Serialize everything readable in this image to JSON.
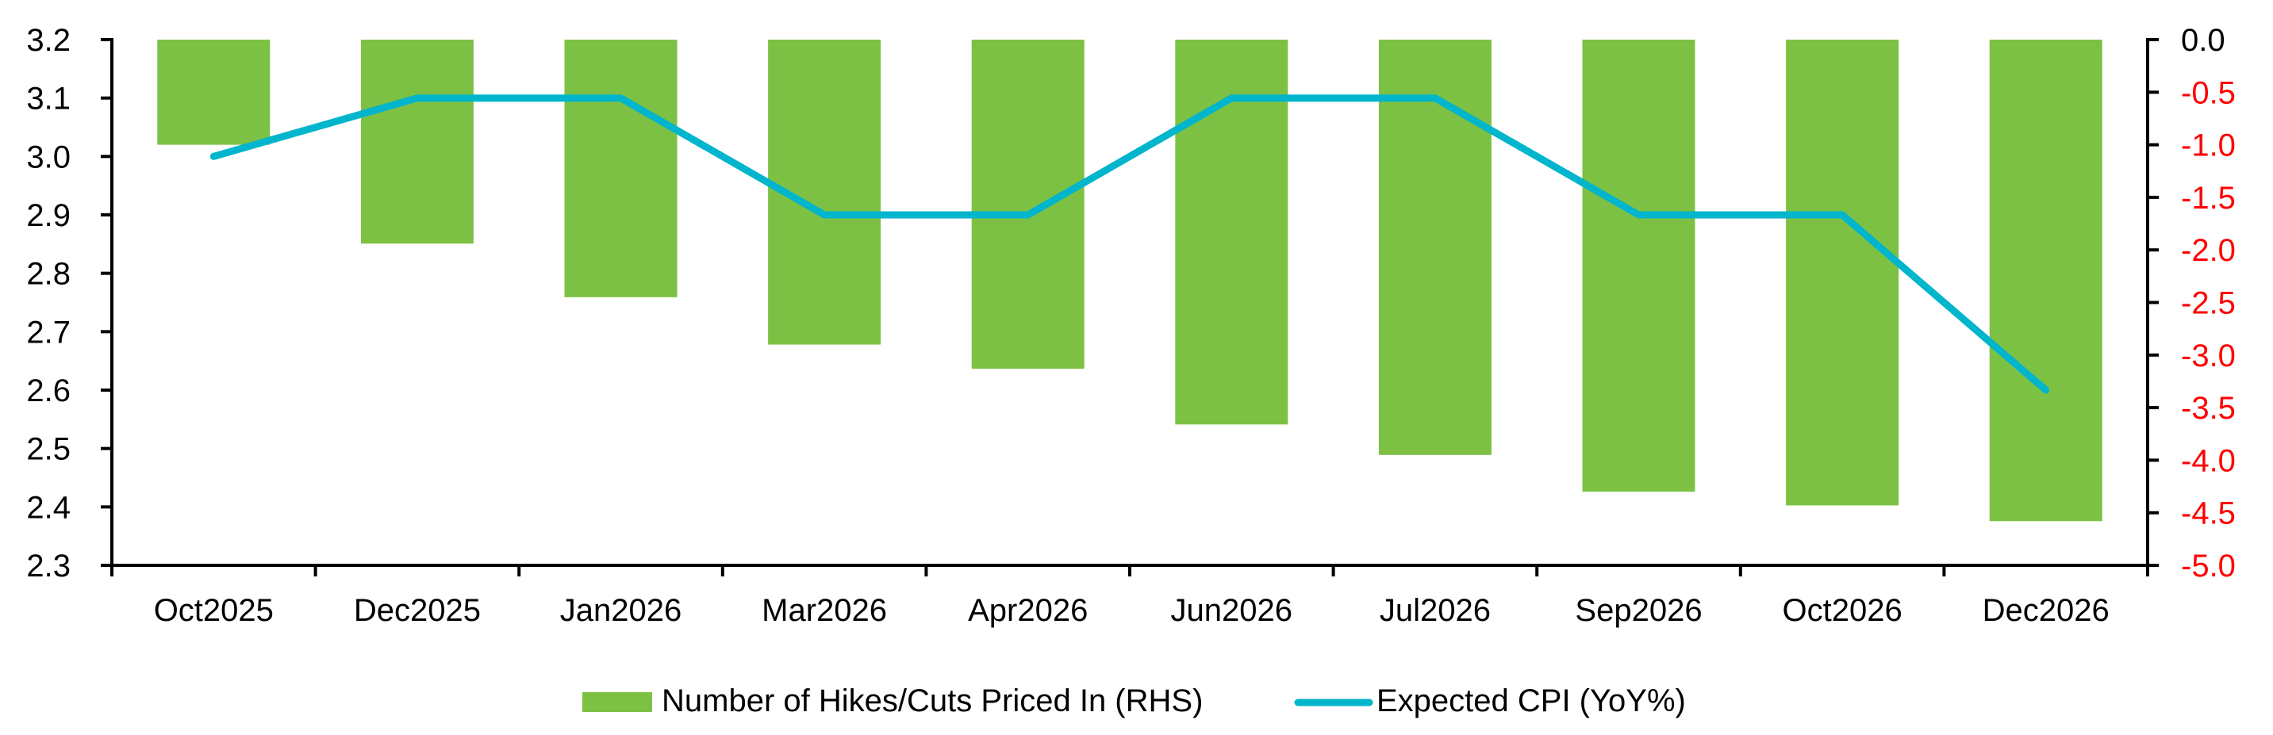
{
  "chart_data": {
    "type": "bar+line",
    "title": "",
    "categories": [
      "Oct2025",
      "Dec2025",
      "Jan2026",
      "Mar2026",
      "Apr2026",
      "Jun2026",
      "Jul2026",
      "Sep2026",
      "Oct2026",
      "Dec2026"
    ],
    "series": [
      {
        "name": "Number of Hikes/Cuts Priced In (RHS)",
        "type": "bar",
        "axis": "right",
        "color": "#7DC144",
        "values": [
          -1.0,
          -1.94,
          -2.45,
          -2.9,
          -3.13,
          -3.66,
          -3.95,
          -4.3,
          -4.43,
          -4.58
        ]
      },
      {
        "name": "Expected CPI (YoY%)",
        "type": "line",
        "axis": "left",
        "color": "#00B5CC",
        "values": [
          3.0,
          3.1,
          3.1,
          2.9,
          2.9,
          3.1,
          3.1,
          2.9,
          2.9,
          2.6
        ]
      }
    ],
    "left_axis": {
      "label": "",
      "ylim": [
        2.3,
        3.2
      ],
      "ticks": [
        "3.2",
        "3.1",
        "3.0",
        "2.9",
        "2.8",
        "2.7",
        "2.6",
        "2.5",
        "2.4",
        "2.3"
      ],
      "tick_color": "#000000"
    },
    "right_axis": {
      "label": "",
      "ylim": [
        -5.0,
        0.0
      ],
      "ticks": [
        "0.0",
        "-0.5",
        "-1.0",
        "-1.5",
        "-2.0",
        "-2.5",
        "-3.0",
        "-3.5",
        "-4.0",
        "-4.5",
        "-5.0"
      ],
      "negative_tick_color": "#FF0000",
      "zero_tick_color": "#000000"
    },
    "xlabel": "",
    "grid": false,
    "legend_position": "bottom"
  },
  "legend": {
    "items": [
      {
        "label": "Number of Hikes/Cuts Priced In (RHS)",
        "swatch": "bar",
        "color": "#7DC144"
      },
      {
        "label": "Expected CPI (YoY%)",
        "swatch": "line",
        "color": "#00B5CC"
      }
    ]
  }
}
